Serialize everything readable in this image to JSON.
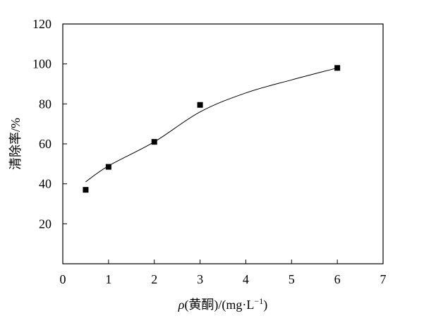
{
  "chart_data": {
    "type": "scatter",
    "title": "",
    "xlabel_parts": {
      "rho": "ρ",
      "rest": "(黄酮)/(mg·L",
      "exp": "−1",
      "close": ")"
    },
    "ylabel": "清除率/%",
    "xlim": [
      0,
      7
    ],
    "ylim": [
      0,
      120
    ],
    "xticks": [
      0,
      1,
      2,
      3,
      4,
      5,
      6,
      7
    ],
    "yticks": [
      20,
      40,
      60,
      80,
      100,
      120
    ],
    "grid": false,
    "series": [
      {
        "x": [
          0.5,
          1,
          2,
          3,
          6
        ],
        "y": [
          37,
          48.5,
          61,
          79.5,
          98
        ],
        "marker": "square",
        "color": "#000000"
      }
    ],
    "fit_curve": {
      "x": [
        0.5,
        1,
        2,
        3,
        4,
        5,
        6
      ],
      "y": [
        41,
        49,
        61,
        76,
        85.5,
        92,
        98
      ]
    }
  }
}
